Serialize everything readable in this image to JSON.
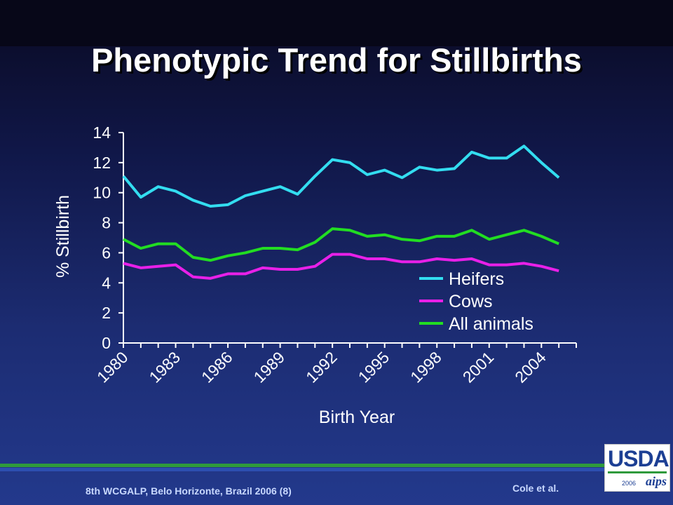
{
  "slide": {
    "title": "Phenotypic Trend for Stillbirths",
    "footer_left": "8th WCGALP, Belo Horizonte, Brazil 2006 (8)",
    "footer_right": "Cole et al.",
    "logo": {
      "word": "USDA",
      "year": "2006",
      "mark": "aips"
    }
  },
  "colors": {
    "background_top": "#0a0a22",
    "background_bottom": "#23398c",
    "heifers": "#33ddf0",
    "cows": "#e820e8",
    "all_animals": "#22dd22",
    "axis": "#ffffff",
    "footer_green": "#2f9a3c",
    "footer_blue": "#2d4fb0"
  },
  "chart_data": {
    "type": "line",
    "title": "",
    "xlabel": "Birth Year",
    "ylabel": "% Stillbirth",
    "x": [
      1980,
      1981,
      1982,
      1983,
      1984,
      1985,
      1986,
      1987,
      1988,
      1989,
      1990,
      1991,
      1992,
      1993,
      1994,
      1995,
      1996,
      1997,
      1998,
      1999,
      2000,
      2001,
      2002,
      2003,
      2004,
      2005
    ],
    "xtick_labels": [
      "1980",
      "1983",
      "1986",
      "1989",
      "1992",
      "1995",
      "1998",
      "2001",
      "2004"
    ],
    "ylim": [
      0,
      14
    ],
    "yticks": [
      0,
      2,
      4,
      6,
      8,
      10,
      12,
      14
    ],
    "grid": false,
    "legend_position": "lower-right",
    "series": [
      {
        "name": "Heifers",
        "color": "#33ddf0",
        "values": [
          11.1,
          9.7,
          10.4,
          10.1,
          9.5,
          9.1,
          9.2,
          9.8,
          10.1,
          10.4,
          9.9,
          11.1,
          12.2,
          12.0,
          11.2,
          11.5,
          11.0,
          11.7,
          11.5,
          11.6,
          12.7,
          12.3,
          12.3,
          13.1,
          12.0,
          11.0
        ]
      },
      {
        "name": "Cows",
        "color": "#e820e8",
        "values": [
          5.3,
          5.0,
          5.1,
          5.2,
          4.4,
          4.3,
          4.6,
          4.6,
          5.0,
          4.9,
          4.9,
          5.1,
          5.9,
          5.9,
          5.6,
          5.6,
          5.4,
          5.4,
          5.6,
          5.5,
          5.6,
          5.2,
          5.2,
          5.3,
          5.1,
          4.8
        ]
      },
      {
        "name": "All animals",
        "color": "#22dd22",
        "values": [
          6.9,
          6.3,
          6.6,
          6.6,
          5.7,
          5.5,
          5.8,
          6.0,
          6.3,
          6.3,
          6.2,
          6.7,
          7.6,
          7.5,
          7.1,
          7.2,
          6.9,
          6.8,
          7.1,
          7.1,
          7.5,
          6.9,
          7.2,
          7.5,
          7.1,
          6.6
        ]
      }
    ]
  }
}
